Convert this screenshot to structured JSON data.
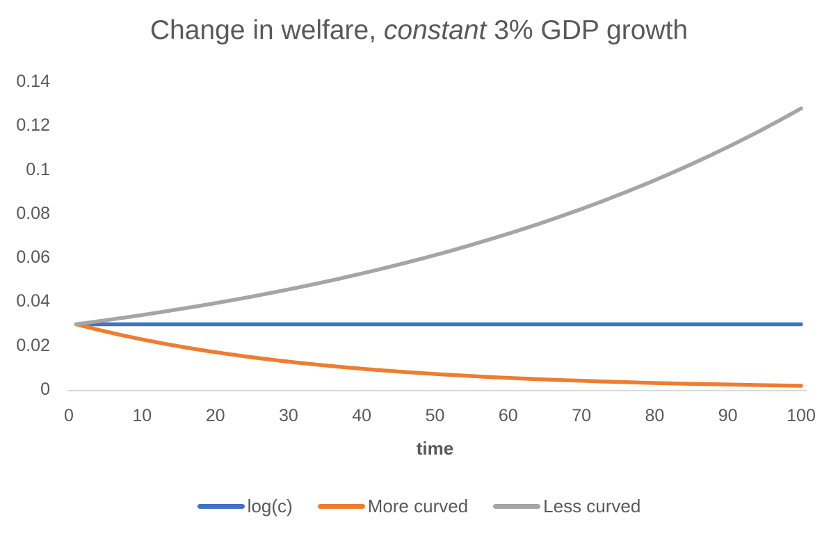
{
  "title": {
    "full": "Change in welfare, constant 3% GDP growth",
    "parts": [
      {
        "text": "Change in welfare, "
      },
      {
        "text": "constant"
      },
      {
        "text": " 3% GDP growth"
      }
    ]
  },
  "axes": {
    "x": {
      "label": "time",
      "tick_values": [
        0,
        10,
        20,
        30,
        40,
        50,
        60,
        70,
        80,
        90,
        100
      ],
      "tick_labels": [
        "0",
        "10",
        "20",
        "30",
        "40",
        "50",
        "60",
        "70",
        "80",
        "90",
        "100"
      ]
    },
    "y": {
      "label": "",
      "tick_values": [
        0,
        0.02,
        0.04,
        0.06,
        0.08,
        0.1,
        0.12,
        0.14
      ],
      "tick_labels": [
        "0",
        "0.02",
        "0.04",
        "0.06",
        "0.08",
        "0.1",
        "0.12",
        "0.14"
      ]
    }
  },
  "colors": {
    "blue_series": "#4472C4",
    "orange_series": "#ED7D31",
    "gray_series": "#A5A5A5",
    "text": "#595959",
    "axis_line": "#D9D9D9",
    "background": "#FFFFFF"
  },
  "legend": {
    "position": "bottom",
    "entries": [
      "log(c)",
      "More curved",
      "Less curved"
    ]
  },
  "chart_data": {
    "type": "line",
    "title": "Change in welfare, constant 3% GDP growth",
    "xlabel": "time",
    "ylabel": "",
    "xlim": [
      0,
      100
    ],
    "ylim": [
      0,
      0.14
    ],
    "grid": false,
    "legend_position": "bottom",
    "series": [
      {
        "name": "log(c)",
        "color": "#4472C4",
        "x": [
          1,
          100
        ],
        "y": [
          0.02956,
          0.02956
        ]
      },
      {
        "name": "More curved",
        "color": "#ED7D31",
        "x": [
          1,
          4,
          7,
          10,
          13,
          16,
          19,
          22,
          25,
          28,
          31,
          34,
          37,
          40,
          43,
          46,
          49,
          52,
          55,
          58,
          61,
          64,
          67,
          70,
          73,
          76,
          79,
          82,
          85,
          88,
          91,
          94,
          97,
          100
        ],
        "y": [
          0.02956,
          0.02705,
          0.02475,
          0.02265,
          0.02073,
          0.01897,
          0.01736,
          0.01589,
          0.01454,
          0.01331,
          0.01218,
          0.01114,
          0.0102,
          0.00933,
          0.00854,
          0.00782,
          0.00715,
          0.00655,
          0.00599,
          0.00548,
          0.00502,
          0.00459,
          0.0042,
          0.00384,
          0.00352,
          0.00322,
          0.00295,
          0.0027,
          0.00247,
          0.00226,
          0.00207,
          0.00189,
          0.00173,
          0.00158
        ]
      },
      {
        "name": "Less curved",
        "color": "#A5A5A5",
        "x": [
          1,
          4,
          7,
          10,
          13,
          16,
          19,
          22,
          25,
          28,
          31,
          34,
          37,
          40,
          43,
          46,
          49,
          52,
          55,
          58,
          61,
          64,
          67,
          70,
          73,
          76,
          79,
          82,
          85,
          88,
          91,
          94,
          97,
          100
        ],
        "y": [
          0.02956,
          0.0309,
          0.0323,
          0.03376,
          0.0353,
          0.0369,
          0.03857,
          0.04032,
          0.04214,
          0.04406,
          0.04605,
          0.04814,
          0.05032,
          0.05261,
          0.05499,
          0.05748,
          0.06009,
          0.06281,
          0.06566,
          0.06864,
          0.07175,
          0.075,
          0.0784,
          0.08195,
          0.08567,
          0.08955,
          0.09361,
          0.09786,
          0.10229,
          0.10693,
          0.11178,
          0.11684,
          0.12214,
          0.12768
        ]
      }
    ]
  }
}
